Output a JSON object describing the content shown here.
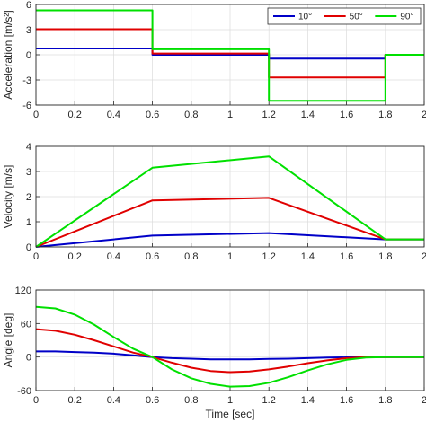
{
  "colors": {
    "series": [
      "#0000c8",
      "#e00000",
      "#00e000"
    ],
    "axes": "#262626",
    "grid": "#dcdcdc",
    "background": "#ffffff"
  },
  "chart_data": [
    {
      "type": "line",
      "ylabel": "Acceleration [m/s²]",
      "ylim": [
        -6,
        6
      ],
      "xlim": [
        0,
        2
      ],
      "grid": true,
      "x_ticks": [
        "0",
        "0.2",
        "0.4",
        "0.6",
        "0.8",
        "1",
        "1.2",
        "1.4",
        "1.6",
        "1.8",
        "2"
      ],
      "y_ticks": [
        "-6",
        "-3",
        "0",
        "3",
        "6"
      ],
      "legend": {
        "position": "top-right",
        "orientation": "horizontal"
      },
      "series": [
        {
          "name": "10°",
          "x": [
            0,
            0.6,
            0.6,
            1.2,
            1.2,
            1.8,
            1.8,
            2
          ],
          "y": [
            0.75,
            0.75,
            0,
            0,
            -0.45,
            -0.45,
            0,
            0
          ]
        },
        {
          "name": "50°",
          "x": [
            0,
            0.6,
            0.6,
            1.2,
            1.2,
            1.8,
            1.8,
            2
          ],
          "y": [
            3.05,
            3.05,
            0.15,
            0.15,
            -2.7,
            -2.7,
            0,
            0
          ]
        },
        {
          "name": "90°",
          "x": [
            0,
            0.6,
            0.6,
            1.2,
            1.2,
            1.8,
            1.8,
            2
          ],
          "y": [
            5.3,
            5.3,
            0.65,
            0.65,
            -5.5,
            -5.5,
            0,
            0
          ]
        }
      ]
    },
    {
      "type": "line",
      "ylabel": "Velocity [m/s]",
      "ylim": [
        0,
        4
      ],
      "xlim": [
        0,
        2
      ],
      "grid": true,
      "x_ticks": [
        "0",
        "0.2",
        "0.4",
        "0.6",
        "0.8",
        "1",
        "1.2",
        "1.4",
        "1.6",
        "1.8",
        "2"
      ],
      "y_ticks": [
        "0",
        "1",
        "2",
        "3",
        "4"
      ],
      "series": [
        {
          "name": "10°",
          "x": [
            0,
            0.6,
            1.2,
            1.8,
            2
          ],
          "y": [
            0,
            0.45,
            0.55,
            0.3,
            0.3
          ]
        },
        {
          "name": "50°",
          "x": [
            0,
            0.6,
            1.2,
            1.8,
            2
          ],
          "y": [
            0,
            1.85,
            1.95,
            0.3,
            0.3
          ]
        },
        {
          "name": "90°",
          "x": [
            0,
            0.6,
            1.2,
            1.8,
            2
          ],
          "y": [
            0,
            3.15,
            3.6,
            0.3,
            0.3
          ]
        }
      ]
    },
    {
      "type": "line",
      "ylabel": "Angle [deg]",
      "xlabel": "Time [sec]",
      "ylim": [
        -60,
        120
      ],
      "xlim": [
        0,
        2
      ],
      "grid": true,
      "x_ticks": [
        "0",
        "0.2",
        "0.4",
        "0.6",
        "0.8",
        "1",
        "1.2",
        "1.4",
        "1.6",
        "1.8",
        "2"
      ],
      "y_ticks": [
        "-60",
        "0",
        "60",
        "120"
      ],
      "series": [
        {
          "name": "10°",
          "x": [
            0,
            0.1,
            0.2,
            0.3,
            0.4,
            0.5,
            0.6,
            0.7,
            0.8,
            0.9,
            1.0,
            1.1,
            1.2,
            1.3,
            1.4,
            1.5,
            1.6,
            1.7,
            1.8,
            1.9,
            2.0
          ],
          "y": [
            10,
            10,
            9,
            8,
            6,
            3,
            0,
            -2,
            -3,
            -4,
            -4,
            -4,
            -3.5,
            -3,
            -2,
            -1,
            -0.5,
            0,
            0,
            0,
            0
          ]
        },
        {
          "name": "50°",
          "x": [
            0,
            0.1,
            0.2,
            0.3,
            0.4,
            0.5,
            0.6,
            0.7,
            0.8,
            0.9,
            1.0,
            1.1,
            1.2,
            1.3,
            1.4,
            1.5,
            1.6,
            1.7,
            1.8,
            1.9,
            2.0
          ],
          "y": [
            50,
            47,
            40,
            30,
            19,
            8,
            0,
            -10,
            -19,
            -25,
            -27,
            -26,
            -22,
            -17,
            -11,
            -6,
            -2,
            0,
            0,
            0,
            0
          ]
        },
        {
          "name": "90°",
          "x": [
            0,
            0.1,
            0.2,
            0.3,
            0.4,
            0.5,
            0.6,
            0.7,
            0.8,
            0.9,
            1.0,
            1.1,
            1.2,
            1.3,
            1.4,
            1.5,
            1.6,
            1.7,
            1.8,
            1.9,
            2.0
          ],
          "y": [
            90,
            87,
            76,
            58,
            36,
            15,
            0,
            -22,
            -38,
            -48,
            -53,
            -52,
            -46,
            -36,
            -24,
            -13,
            -5,
            -1,
            0,
            0,
            0
          ]
        }
      ]
    }
  ]
}
